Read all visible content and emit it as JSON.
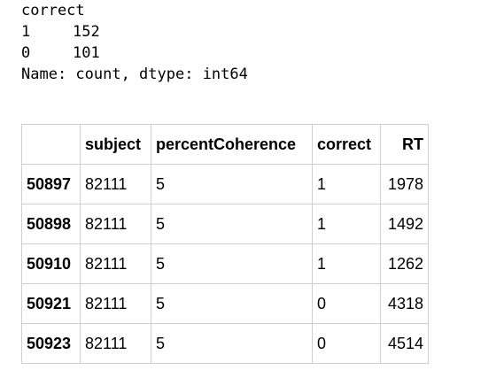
{
  "value_counts": {
    "name_line": "correct",
    "rows": [
      {
        "key": "1",
        "value": "152"
      },
      {
        "key": "0",
        "value": "101"
      }
    ],
    "footer_line": "Name: count, dtype: int64"
  },
  "dataframe": {
    "columns": [
      "",
      "subject",
      "percentCoherence",
      "correct",
      "RT"
    ],
    "rows": [
      {
        "index": "50897",
        "subject": "82111",
        "percentCoherence": "5",
        "correct": "1",
        "RT": "1978"
      },
      {
        "index": "50898",
        "subject": "82111",
        "percentCoherence": "5",
        "correct": "1",
        "RT": "1492"
      },
      {
        "index": "50910",
        "subject": "82111",
        "percentCoherence": "5",
        "correct": "1",
        "RT": "1262"
      },
      {
        "index": "50921",
        "subject": "82111",
        "percentCoherence": "5",
        "correct": "0",
        "RT": "4318"
      },
      {
        "index": "50923",
        "subject": "82111",
        "percentCoherence": "5",
        "correct": "0",
        "RT": "4514"
      }
    ]
  }
}
